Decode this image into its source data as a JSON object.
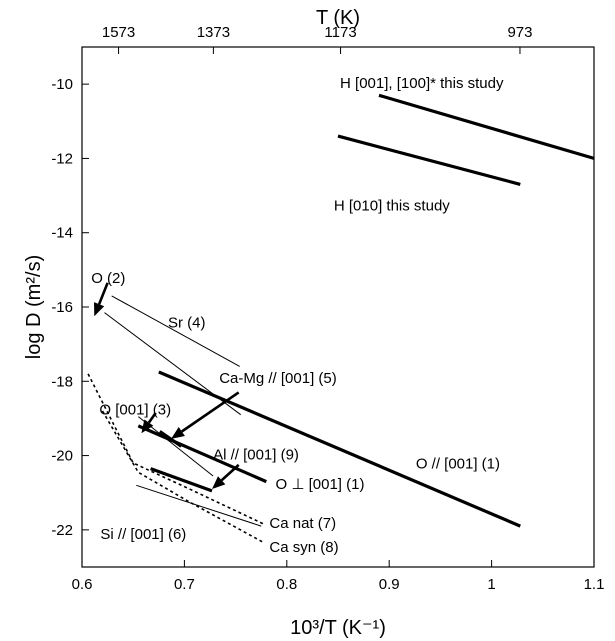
{
  "chart_data": {
    "type": "line",
    "xlabel": "10³/T (K⁻¹)",
    "ylabel": "log D (m²/s)",
    "top_axis_label": "T (K)",
    "xlim": [
      0.6,
      1.1
    ],
    "ylim": [
      -23,
      -9
    ],
    "x_ticks": [
      0.6,
      0.7,
      0.8,
      0.9,
      1.0,
      1.1
    ],
    "x_tick_labels": [
      "0.6",
      "0.7",
      "0.8",
      "0.9",
      "1",
      "1.1"
    ],
    "y_ticks": [
      -22,
      -20,
      -18,
      -16,
      -14,
      -12,
      -10
    ],
    "y_tick_labels": [
      "-22",
      "-20",
      "-18",
      "-16",
      "-14",
      "-12",
      "-10"
    ],
    "top_ticks": [
      {
        "label": "1573",
        "x": 0.6357
      },
      {
        "label": "1373",
        "x": 0.7283
      },
      {
        "label": "1173",
        "x": 0.8525
      },
      {
        "label": "973",
        "x": 1.0277
      }
    ],
    "grid": false,
    "series": [
      {
        "id": "h100",
        "points": [
          [
            0.89,
            -10.3
          ],
          [
            1.1,
            -12.0
          ]
        ],
        "style": "thick"
      },
      {
        "id": "h010",
        "points": [
          [
            0.85,
            -11.4
          ],
          [
            1.028,
            -12.7
          ]
        ],
        "style": "thick"
      },
      {
        "id": "o001-1",
        "points": [
          [
            0.675,
            -17.75
          ],
          [
            1.028,
            -21.9
          ]
        ],
        "style": "thick"
      },
      {
        "id": "operp-1",
        "points": [
          [
            0.655,
            -19.2
          ],
          [
            0.78,
            -20.7
          ]
        ],
        "style": "thick"
      },
      {
        "id": "camg",
        "points": [
          [
            0.676,
            -19.35
          ],
          [
            0.697,
            -19.75
          ]
        ],
        "style": "thick"
      },
      {
        "id": "al",
        "points": [
          [
            0.667,
            -20.35
          ],
          [
            0.727,
            -20.95
          ]
        ],
        "style": "thick"
      },
      {
        "id": "o-2",
        "points": [
          [
            0.622,
            -16.15
          ],
          [
            0.755,
            -18.9
          ]
        ],
        "style": "thin"
      },
      {
        "id": "sr-4",
        "points": [
          [
            0.629,
            -15.7
          ],
          [
            0.754,
            -17.6
          ]
        ],
        "style": "thin"
      },
      {
        "id": "o001-3",
        "points": [
          [
            0.655,
            -18.95
          ],
          [
            0.728,
            -20.55
          ]
        ],
        "style": "thin"
      },
      {
        "id": "si-6",
        "points": [
          [
            0.653,
            -20.8
          ],
          [
            0.775,
            -21.9
          ]
        ],
        "style": "thin"
      },
      {
        "id": "ca-nat-7",
        "points": [
          [
            0.606,
            -17.8
          ],
          [
            0.65,
            -20.2
          ],
          [
            0.705,
            -20.9
          ],
          [
            0.778,
            -21.85
          ]
        ],
        "style": "dotted"
      },
      {
        "id": "ca-syn-8",
        "points": [
          [
            0.62,
            -18.8
          ],
          [
            0.655,
            -20.45
          ],
          [
            0.705,
            -21.25
          ],
          [
            0.778,
            -22.35
          ]
        ],
        "style": "dotted"
      }
    ],
    "arrows": [
      {
        "id": "o2-arrow",
        "from": [
          0.625,
          -15.35
        ],
        "to": [
          0.612,
          -16.25
        ]
      },
      {
        "id": "camg-arrow",
        "from": [
          0.753,
          -18.3
        ],
        "to": [
          0.687,
          -19.55
        ]
      },
      {
        "id": "o001-3-arrow",
        "from": [
          0.672,
          -18.85
        ],
        "to": [
          0.658,
          -19.4
        ]
      },
      {
        "id": "al-arrow",
        "from": [
          0.753,
          -20.25
        ],
        "to": [
          0.727,
          -20.9
        ]
      }
    ],
    "annotations": [
      {
        "id": "h100",
        "text": "H [001], [100]* this study",
        "x": 0.852,
        "y": -10.1
      },
      {
        "id": "h010",
        "text": "H [010] this study",
        "x": 0.846,
        "y": -13.4
      },
      {
        "id": "o2",
        "text": "O (2)",
        "x": 0.609,
        "y": -15.35
      },
      {
        "id": "sr4",
        "text": "Sr (4)",
        "x": 0.684,
        "y": -16.55
      },
      {
        "id": "camg",
        "text": "Ca-Mg // [001] (5)",
        "x": 0.734,
        "y": -18.05
      },
      {
        "id": "o001-3",
        "text": "O [001] (3)",
        "x": 0.617,
        "y": -18.9
      },
      {
        "id": "al9",
        "text": "Al // [001] (9)",
        "x": 0.728,
        "y": -20.1
      },
      {
        "id": "o001-1",
        "text": "O // [001] (1)",
        "x": 0.926,
        "y": -20.35
      },
      {
        "id": "operp",
        "text": "O ⊥ [001] (1)",
        "x": 0.789,
        "y": -20.9
      },
      {
        "id": "si6",
        "text": "Si // [001] (6)",
        "x": 0.618,
        "y": -22.25
      },
      {
        "id": "canat",
        "text": "Ca nat (7)",
        "x": 0.783,
        "y": -21.95
      },
      {
        "id": "casyn",
        "text": "Ca syn (8)",
        "x": 0.783,
        "y": -22.6
      }
    ]
  }
}
